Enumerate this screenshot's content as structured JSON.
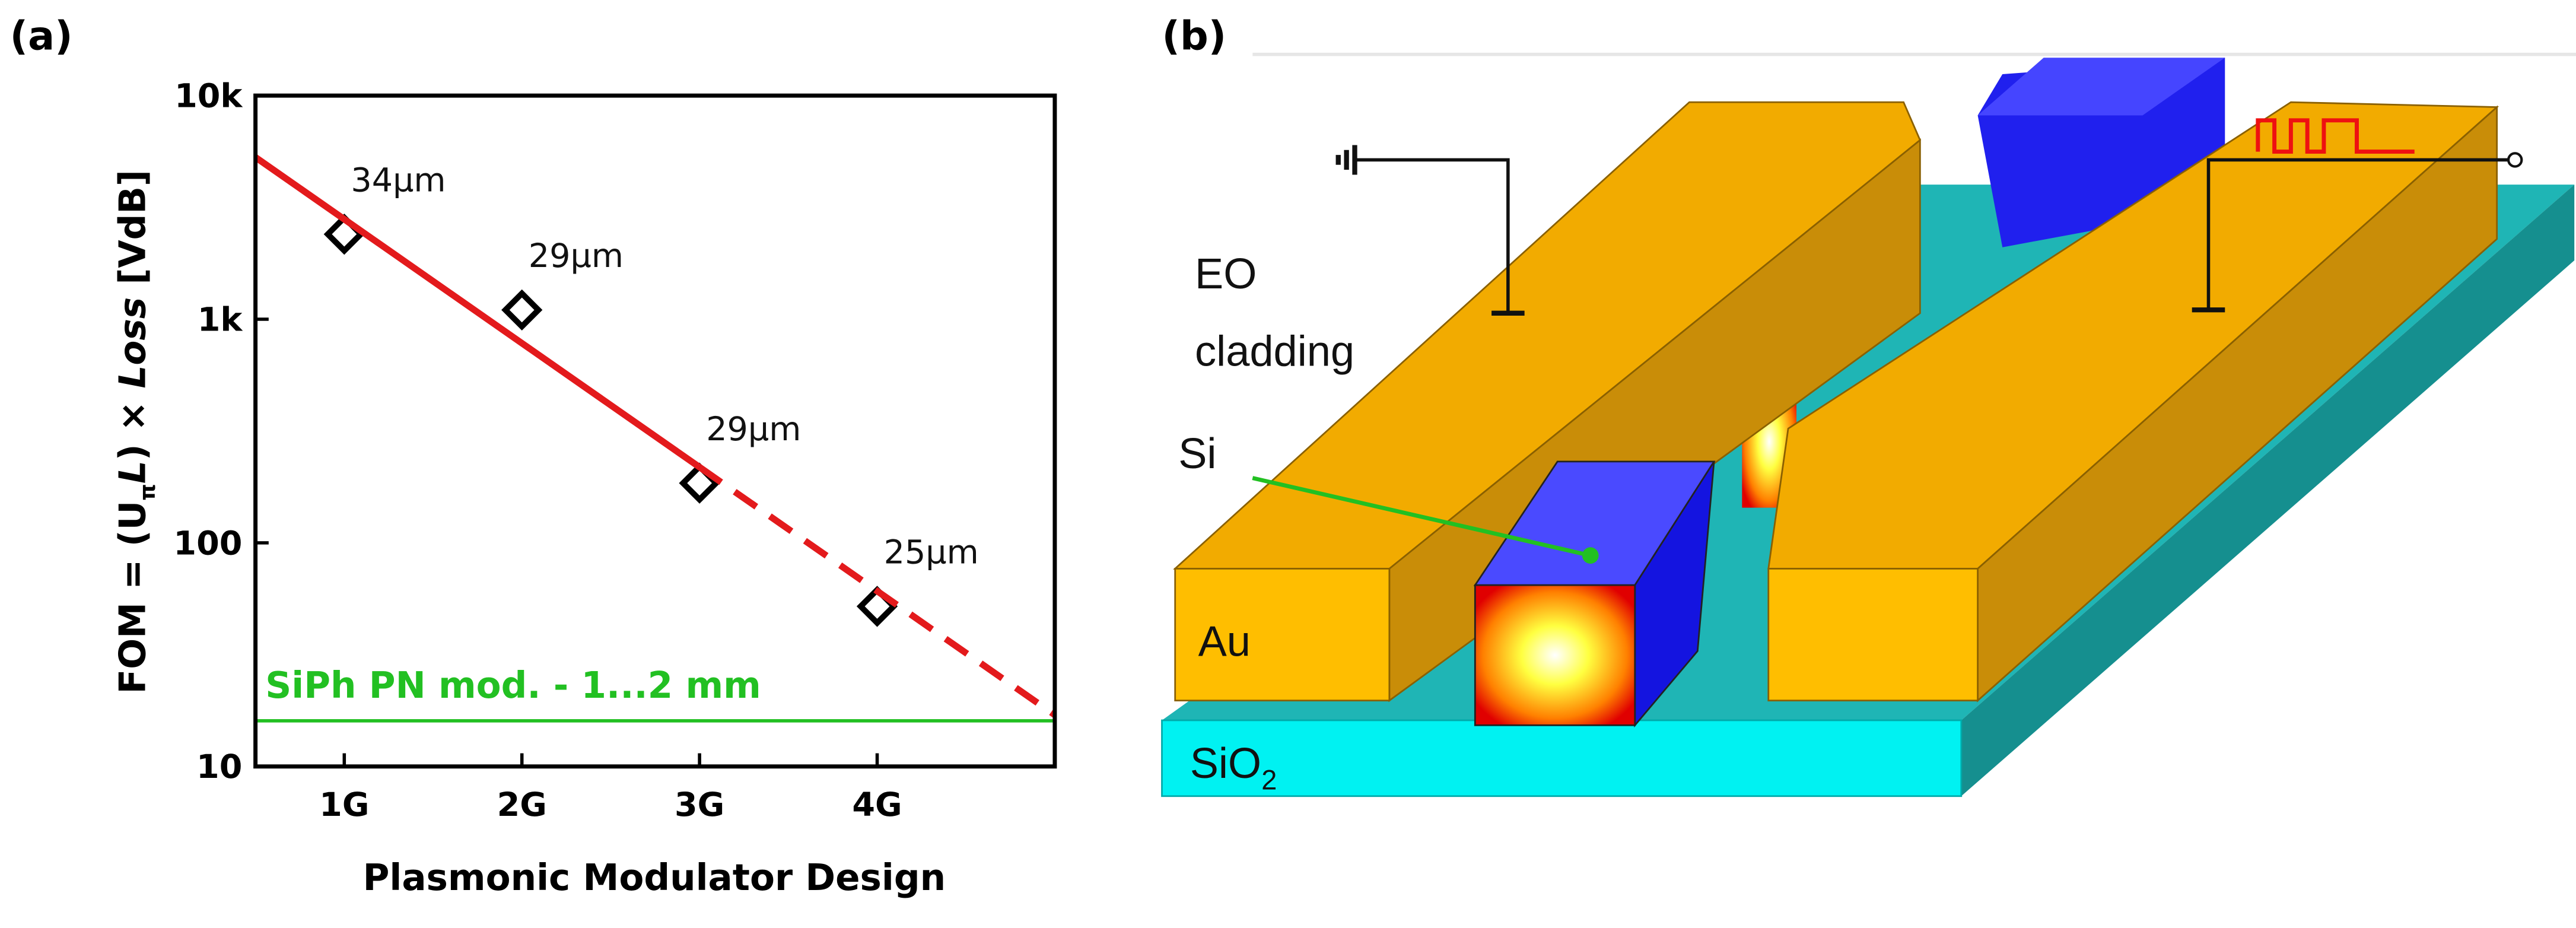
{
  "chart_data": {
    "type": "scatter",
    "panel": "(a)",
    "xlabel": "Plasmonic Modulator Design",
    "ylabel": [
      "FOM = (U",
      "π",
      "L",
      ") × ",
      "Loss",
      " [VdB]"
    ],
    "xlim": [
      0.5,
      5
    ],
    "ylim": [
      10,
      10000
    ],
    "log_y": true,
    "xticks": [
      {
        "value": 1,
        "label": "1G"
      },
      {
        "value": 2,
        "label": "2G"
      },
      {
        "value": 3,
        "label": "3G"
      },
      {
        "value": 4,
        "label": "4G"
      }
    ],
    "yticks": [
      10,
      100,
      {
        "value": 1000,
        "label": "1k"
      },
      {
        "value": 10000,
        "label": "10k"
      }
    ],
    "series": [
      {
        "marker": "diamond",
        "color": "#000000",
        "x": [
          1,
          2,
          3,
          4
        ],
        "values": [
          2400,
          1100,
          185,
          52
        ],
        "point_labels": [
          "34µm",
          "29µm",
          "29µm",
          "25µm"
        ]
      },
      {
        "line": "solid",
        "color": "#e31a1c",
        "x": [
          0.5,
          3
        ],
        "values": [
          5300,
          218
        ]
      },
      {
        "line": "dashed",
        "color": "#e31a1c",
        "x": [
          3,
          5
        ],
        "values": [
          218,
          17
        ]
      }
    ],
    "reference_line": {
      "value": 16,
      "label": "SiPh PN mod. - 1...2 mm",
      "color": "#22c022"
    }
  },
  "diagram": {
    "panel": "(b)",
    "labels": {
      "eo": "EO",
      "cladding": "cladding",
      "si": "Si",
      "au": "Au",
      "sio2": [
        "SiO",
        "2"
      ]
    }
  }
}
